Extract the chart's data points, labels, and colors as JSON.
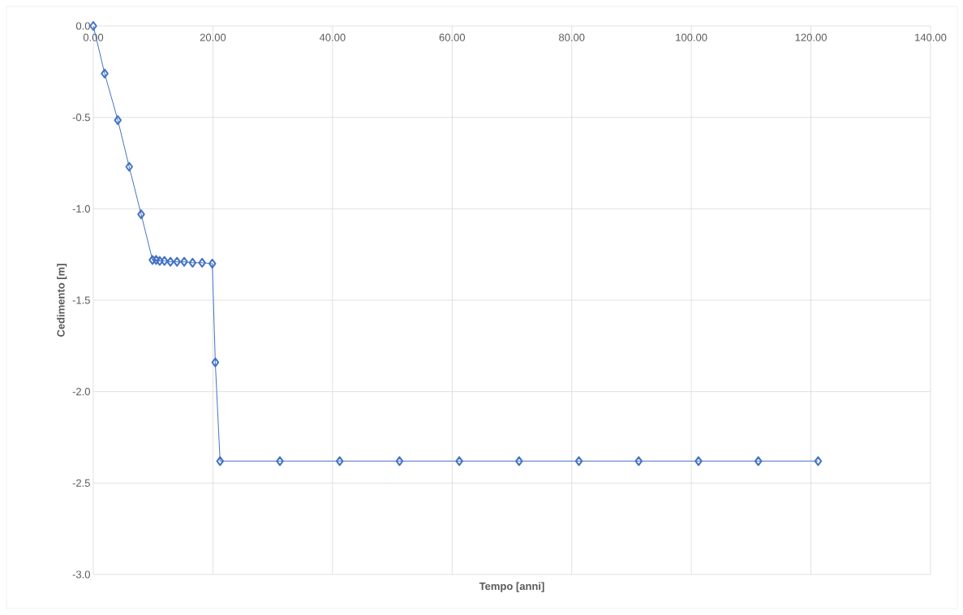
{
  "chart_data": {
    "type": "line",
    "xlabel": "Tempo [anni]",
    "ylabel": "Cedimento [m]",
    "x": [
      0,
      1.9,
      4.1,
      6.0,
      8.0,
      9.9,
      10.5,
      11.1,
      11.9,
      12.9,
      14.0,
      15.2,
      16.6,
      18.2,
      19.9,
      20.4,
      21.2,
      31.2,
      41.2,
      51.2,
      61.2,
      71.2,
      81.2,
      91.2,
      101.2,
      111.2,
      121.2
    ],
    "series": [
      {
        "color": "#4472c4",
        "values": [
          0,
          -0.26,
          -0.515,
          -0.77,
          -1.03,
          -1.28,
          -1.28,
          -1.285,
          -1.285,
          -1.29,
          -1.29,
          -1.29,
          -1.295,
          -1.295,
          -1.3,
          -1.84,
          -2.38,
          -2.38,
          -2.38,
          -2.38,
          -2.38,
          -2.38,
          -2.38,
          -2.38,
          -2.38,
          -2.38,
          -2.38
        ]
      }
    ],
    "xlim": [
      0,
      140
    ],
    "ylim": [
      -3,
      0
    ],
    "xticks": [
      {
        "value": 0,
        "label": "0.00"
      },
      {
        "value": 20,
        "label": "20.00"
      },
      {
        "value": 40,
        "label": "40.00"
      },
      {
        "value": 60,
        "label": "60.00"
      },
      {
        "value": 80,
        "label": "80.00"
      },
      {
        "value": 100,
        "label": "100.00"
      },
      {
        "value": 120,
        "label": "120.00"
      },
      {
        "value": 140,
        "label": "140.00"
      }
    ],
    "yticks": [
      {
        "value": -3,
        "label": "-3.0"
      },
      {
        "value": -2.5,
        "label": "-2.5"
      },
      {
        "value": -2,
        "label": "-2.0"
      },
      {
        "value": -1.5,
        "label": "-1.5"
      },
      {
        "value": -1,
        "label": "-1.0"
      },
      {
        "value": -0.5,
        "label": "-0.5"
      },
      {
        "value": 0,
        "label": "0.0"
      }
    ],
    "grid": true,
    "marker": "diamond",
    "line_style": "solid",
    "legend": false
  }
}
